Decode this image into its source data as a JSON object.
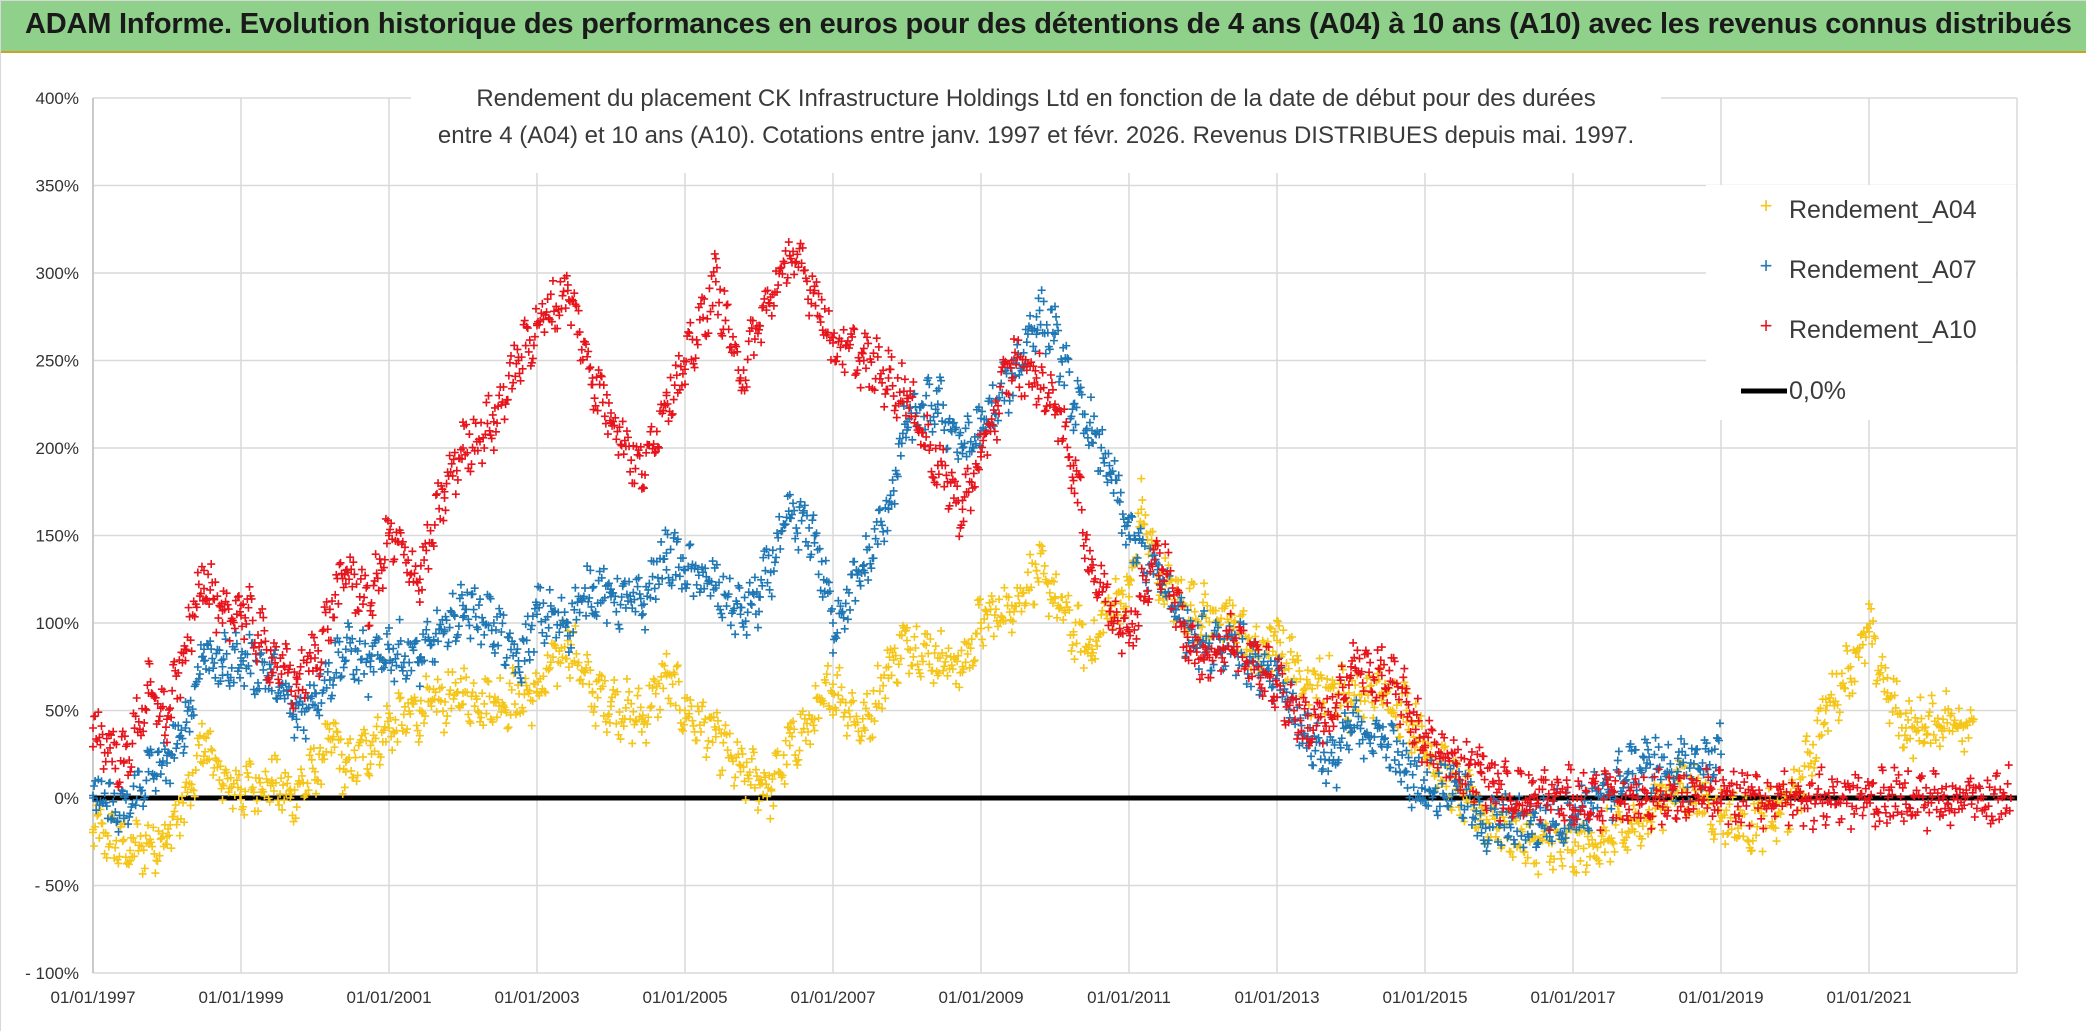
{
  "header": {
    "title": "ADAM Informe. Evolution historique des performances en euros pour des détentions de 4 ans (A04) à 10 ans (A10) avec les revenus connus distribués"
  },
  "chart_data": {
    "type": "scatter",
    "title_line1": "Rendement du placement CK Infrastructure Holdings Ltd en fonction de la date de début pour des durées",
    "title_line2": "entre 4 (A04) et 10 ans (A10). Cotations entre janv. 1997 et févr. 2026. Revenus DISTRIBUES depuis mai. 1997.",
    "xlabel": "",
    "ylabel": "",
    "xlim": [
      "1997-01-01",
      "2023-01-01"
    ],
    "ylim": [
      -100,
      400
    ],
    "x_ticks": [
      "01/01/1997",
      "01/01/1999",
      "01/01/2001",
      "01/01/2003",
      "01/01/2005",
      "01/01/2007",
      "01/01/2009",
      "01/01/2011",
      "01/01/2013",
      "01/01/2015",
      "01/01/2017",
      "01/01/2019",
      "01/01/2021"
    ],
    "y_ticks": [
      "- 100%",
      "- 50%",
      "0%",
      "50%",
      "100%",
      "150%",
      "200%",
      "250%",
      "300%",
      "350%",
      "400%"
    ],
    "grid": true,
    "legend_position": "top-right",
    "legend": [
      "Rendement_A04",
      "Rendement_A07",
      "Rendement_A10",
      "0,0%"
    ],
    "colors": {
      "A04": "#f5c518",
      "A07": "#1f77b4",
      "A10": "#e8141c",
      "zero": "#000000"
    },
    "series": [
      {
        "name": "Rendement_A04",
        "key": "A04",
        "points": [
          [
            "1997-01",
            -18
          ],
          [
            "1997-07",
            -30
          ],
          [
            "1998-01",
            -22
          ],
          [
            "1998-05",
            5
          ],
          [
            "1998-07",
            35
          ],
          [
            "1998-10",
            8
          ],
          [
            "1999-01",
            5
          ],
          [
            "1999-06",
            10
          ],
          [
            "1999-09",
            0
          ],
          [
            "2000-01",
            15
          ],
          [
            "2000-04",
            35
          ],
          [
            "2000-06",
            15
          ],
          [
            "2000-10",
            30
          ],
          [
            "2001-01",
            40
          ],
          [
            "2001-06",
            50
          ],
          [
            "2002-01",
            60
          ],
          [
            "2002-06",
            55
          ],
          [
            "2003-01",
            60
          ],
          [
            "2003-06",
            90
          ],
          [
            "2003-10",
            60
          ],
          [
            "2004-01",
            55
          ],
          [
            "2004-06",
            45
          ],
          [
            "2004-10",
            70
          ],
          [
            "2005-01",
            50
          ],
          [
            "2005-06",
            35
          ],
          [
            "2005-10",
            15
          ],
          [
            "2006-01",
            10
          ],
          [
            "2006-03",
            5
          ],
          [
            "2006-06",
            30
          ],
          [
            "2006-10",
            45
          ],
          [
            "2007-01",
            65
          ],
          [
            "2007-06",
            40
          ],
          [
            "2007-10",
            75
          ],
          [
            "2008-01",
            90
          ],
          [
            "2008-06",
            80
          ],
          [
            "2008-10",
            75
          ],
          [
            "2009-01",
            100
          ],
          [
            "2009-06",
            110
          ],
          [
            "2009-10",
            130
          ],
          [
            "2010-01",
            115
          ],
          [
            "2010-04",
            95
          ],
          [
            "2010-07",
            85
          ],
          [
            "2010-10",
            110
          ],
          [
            "2011-01",
            115
          ],
          [
            "2011-03",
            165
          ],
          [
            "2011-06",
            125
          ],
          [
            "2011-10",
            110
          ],
          [
            "2012-01",
            105
          ],
          [
            "2012-06",
            100
          ],
          [
            "2012-10",
            80
          ],
          [
            "2013-01",
            90
          ],
          [
            "2013-06",
            65
          ],
          [
            "2013-10",
            65
          ],
          [
            "2014-01",
            55
          ],
          [
            "2014-06",
            60
          ],
          [
            "2014-10",
            50
          ],
          [
            "2015-01",
            30
          ],
          [
            "2015-06",
            5
          ],
          [
            "2015-10",
            -10
          ],
          [
            "2016-01",
            -15
          ],
          [
            "2016-06",
            -25
          ],
          [
            "2017-01",
            -30
          ],
          [
            "2017-06",
            -25
          ],
          [
            "2017-10",
            -20
          ],
          [
            "2018-01",
            -10
          ],
          [
            "2018-06",
            10
          ],
          [
            "2018-10",
            0
          ],
          [
            "2019-01",
            -10
          ],
          [
            "2019-06",
            -15
          ],
          [
            "2019-10",
            -10
          ],
          [
            "2020-01",
            0
          ],
          [
            "2020-06",
            50
          ],
          [
            "2020-10",
            75
          ],
          [
            "2021-01",
            95
          ],
          [
            "2021-04",
            60
          ],
          [
            "2021-07",
            40
          ],
          [
            "2021-10",
            40
          ],
          [
            "2022-01",
            45
          ],
          [
            "2022-06",
            45
          ]
        ]
      },
      {
        "name": "Rendement_A07",
        "key": "A07",
        "points": [
          [
            "1997-01",
            0
          ],
          [
            "1997-06",
            -10
          ],
          [
            "1997-10",
            15
          ],
          [
            "1998-01",
            20
          ],
          [
            "1998-04",
            40
          ],
          [
            "1998-07",
            85
          ],
          [
            "1998-10",
            75
          ],
          [
            "1999-01",
            80
          ],
          [
            "1999-06",
            70
          ],
          [
            "1999-10",
            45
          ],
          [
            "2000-01",
            60
          ],
          [
            "2000-06",
            85
          ],
          [
            "2000-10",
            75
          ],
          [
            "2001-01",
            85
          ],
          [
            "2001-06",
            80
          ],
          [
            "2001-10",
            95
          ],
          [
            "2002-01",
            110
          ],
          [
            "2002-06",
            100
          ],
          [
            "2002-10",
            75
          ],
          [
            "2003-01",
            105
          ],
          [
            "2003-06",
            100
          ],
          [
            "2003-10",
            120
          ],
          [
            "2004-01",
            115
          ],
          [
            "2004-06",
            110
          ],
          [
            "2004-10",
            140
          ],
          [
            "2005-01",
            130
          ],
          [
            "2005-06",
            120
          ],
          [
            "2005-10",
            105
          ],
          [
            "2006-01",
            115
          ],
          [
            "2006-06",
            160
          ],
          [
            "2006-10",
            150
          ],
          [
            "2007-01",
            100
          ],
          [
            "2007-06",
            130
          ],
          [
            "2007-10",
            165
          ],
          [
            "2008-01",
            215
          ],
          [
            "2008-06",
            225
          ],
          [
            "2008-10",
            200
          ],
          [
            "2009-01",
            210
          ],
          [
            "2009-06",
            240
          ],
          [
            "2009-10",
            275
          ],
          [
            "2010-01",
            265
          ],
          [
            "2010-04",
            225
          ],
          [
            "2010-07",
            210
          ],
          [
            "2010-10",
            185
          ],
          [
            "2011-01",
            150
          ],
          [
            "2011-06",
            125
          ],
          [
            "2011-10",
            100
          ],
          [
            "2012-01",
            90
          ],
          [
            "2012-06",
            90
          ],
          [
            "2012-10",
            70
          ],
          [
            "2013-01",
            70
          ],
          [
            "2013-06",
            35
          ],
          [
            "2013-10",
            20
          ],
          [
            "2014-01",
            40
          ],
          [
            "2014-06",
            35
          ],
          [
            "2014-10",
            15
          ],
          [
            "2015-01",
            5
          ],
          [
            "2015-06",
            10
          ],
          [
            "2015-10",
            -15
          ],
          [
            "2016-01",
            -15
          ],
          [
            "2016-06",
            -15
          ],
          [
            "2017-01",
            -10
          ],
          [
            "2017-06",
            0
          ],
          [
            "2017-10",
            15
          ],
          [
            "2018-01",
            20
          ],
          [
            "2018-06",
            15
          ],
          [
            "2018-10",
            20
          ],
          [
            "2019-01",
            25
          ]
        ]
      },
      {
        "name": "Rendement_A10",
        "key": "A10",
        "points": [
          [
            "1997-01",
            40
          ],
          [
            "1997-06",
            20
          ],
          [
            "1997-10",
            60
          ],
          [
            "1998-01",
            45
          ],
          [
            "1998-04",
            85
          ],
          [
            "1998-07",
            130
          ],
          [
            "1998-10",
            100
          ],
          [
            "1999-01",
            110
          ],
          [
            "1999-06",
            80
          ],
          [
            "1999-10",
            65
          ],
          [
            "2000-01",
            80
          ],
          [
            "2000-06",
            130
          ],
          [
            "2000-10",
            110
          ],
          [
            "2001-01",
            150
          ],
          [
            "2001-06",
            125
          ],
          [
            "2001-10",
            175
          ],
          [
            "2002-01",
            200
          ],
          [
            "2002-06",
            215
          ],
          [
            "2002-10",
            250
          ],
          [
            "2003-01",
            270
          ],
          [
            "2003-06",
            290
          ],
          [
            "2003-10",
            240
          ],
          [
            "2004-01",
            220
          ],
          [
            "2004-06",
            185
          ],
          [
            "2004-10",
            230
          ],
          [
            "2005-01",
            245
          ],
          [
            "2005-06",
            295
          ],
          [
            "2005-10",
            240
          ],
          [
            "2006-01",
            270
          ],
          [
            "2006-06",
            310
          ],
          [
            "2006-10",
            290
          ],
          [
            "2007-01",
            260
          ],
          [
            "2007-06",
            250
          ],
          [
            "2007-10",
            240
          ],
          [
            "2008-01",
            230
          ],
          [
            "2008-06",
            190
          ],
          [
            "2008-10",
            165
          ],
          [
            "2009-01",
            195
          ],
          [
            "2009-06",
            250
          ],
          [
            "2009-10",
            240
          ],
          [
            "2010-01",
            225
          ],
          [
            "2010-04",
            190
          ],
          [
            "2010-07",
            130
          ],
          [
            "2010-10",
            110
          ],
          [
            "2011-01",
            95
          ],
          [
            "2011-06",
            140
          ],
          [
            "2011-10",
            95
          ],
          [
            "2012-01",
            80
          ],
          [
            "2012-06",
            90
          ],
          [
            "2012-10",
            75
          ],
          [
            "2013-01",
            65
          ],
          [
            "2013-06",
            40
          ],
          [
            "2013-10",
            45
          ],
          [
            "2014-01",
            75
          ],
          [
            "2014-06",
            70
          ],
          [
            "2014-10",
            55
          ],
          [
            "2015-01",
            30
          ],
          [
            "2015-06",
            20
          ],
          [
            "2015-10",
            15
          ],
          [
            "2016-01",
            5
          ],
          [
            "2016-06",
            0
          ],
          [
            "2017-01",
            0
          ],
          [
            "2018-01",
            0
          ],
          [
            "2019-01",
            0
          ],
          [
            "2020-01",
            0
          ],
          [
            "2021-01",
            0
          ],
          [
            "2022-01",
            0
          ],
          [
            "2022-12",
            0
          ]
        ]
      }
    ]
  }
}
